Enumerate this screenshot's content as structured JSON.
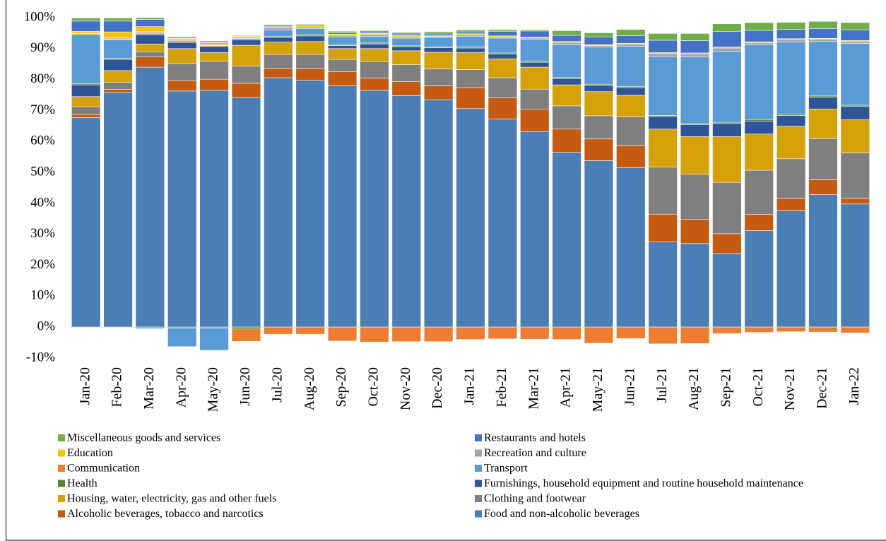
{
  "chart_data": {
    "type": "stacked_bar",
    "categories": [
      "Jan-20",
      "Feb-20",
      "Mar-20",
      "Apr-20",
      "May-20",
      "Jun-20",
      "Jul-20",
      "Aug-20",
      "Sep-20",
      "Oct-20",
      "Nov-20",
      "Dec-20",
      "Jan-21",
      "Feb-21",
      "Mar-21",
      "Apr-21",
      "May-21",
      "Jun-21",
      "Jul-21",
      "Aug-21",
      "Sep-21",
      "Oct-21",
      "Nov-21",
      "Dec-21",
      "Jan-22"
    ],
    "series": [
      {
        "name": "Food and non-alcoholic beverages",
        "color": "#4a7eb4",
        "values": [
          67.7,
          75.8,
          84.0,
          76.3,
          76.5,
          74.2,
          80.6,
          79.8,
          78.0,
          76.5,
          74.8,
          73.5,
          70.6,
          67.3,
          63.2,
          56.5,
          53.8,
          51.5,
          27.5,
          27.0,
          23.8,
          31.2,
          37.6,
          42.8,
          39.8
        ]
      },
      {
        "name": "Alcoholic beverages, tobacco and narcotics",
        "color": "#c55a11",
        "values": [
          1.0,
          1.0,
          3.3,
          3.4,
          3.6,
          4.6,
          3.0,
          3.8,
          4.5,
          4.0,
          4.5,
          4.5,
          6.8,
          6.8,
          7.2,
          7.5,
          7.0,
          7.2,
          9.0,
          7.8,
          6.4,
          5.2,
          4.0,
          4.8,
          1.9
        ]
      },
      {
        "name": "Clothing and footwear",
        "color": "#7f7f7f",
        "values": [
          2.5,
          2.3,
          1.7,
          5.5,
          5.8,
          5.6,
          4.5,
          4.5,
          4.0,
          5.3,
          5.5,
          5.4,
          5.8,
          6.5,
          6.5,
          7.5,
          7.5,
          9.2,
          15.2,
          14.6,
          16.6,
          14.3,
          12.8,
          13.3,
          14.6
        ]
      },
      {
        "name": "Housing, water, electricity, gas and other fuels",
        "color": "#d4a106",
        "values": [
          3.3,
          3.8,
          2.5,
          4.8,
          2.8,
          6.7,
          4.0,
          4.2,
          3.5,
          4.2,
          4.5,
          5.4,
          5.5,
          6.1,
          7.1,
          6.8,
          7.8,
          7.0,
          12.3,
          12.2,
          14.8,
          11.7,
          10.5,
          9.6,
          10.7
        ]
      },
      {
        "name": "Furnishings, household equipment and routine household maintenance",
        "color": "#2f5597",
        "values": [
          3.8,
          3.6,
          3.0,
          2.0,
          2.0,
          1.7,
          1.5,
          1.8,
          1.0,
          1.5,
          1.3,
          1.5,
          1.5,
          1.5,
          1.6,
          2.0,
          2.0,
          2.5,
          4.0,
          3.8,
          4.2,
          4.2,
          3.5,
          3.8,
          4.3
        ]
      },
      {
        "name": "Health",
        "color": "#548235",
        "values": [
          0.4,
          0.4,
          0.3,
          -0.3,
          -0.3,
          -0.6,
          0.4,
          0.4,
          0.3,
          0.3,
          0.3,
          0.3,
          0.3,
          0.4,
          0.4,
          0.4,
          0.4,
          0.4,
          0.4,
          0.4,
          0.4,
          0.5,
          0.4,
          0.4,
          0.4
        ]
      },
      {
        "name": "Transport",
        "color": "#5b9bd5",
        "values": [
          15.8,
          6.0,
          -0.5,
          -6.0,
          -7.2,
          0.5,
          2.0,
          2.0,
          2.5,
          2.2,
          2.5,
          3.0,
          3.5,
          4.8,
          7.0,
          10.5,
          12.0,
          13.0,
          19.0,
          21.5,
          23.0,
          24.2,
          23.3,
          17.6,
          20.0
        ]
      },
      {
        "name": "Communication",
        "color": "#ed7d31",
        "values": [
          0.3,
          0.2,
          0.3,
          0.5,
          0.3,
          -4.0,
          -2.3,
          -2.3,
          -4.5,
          -4.8,
          -4.7,
          -4.7,
          -4.0,
          -3.8,
          -3.9,
          -4.0,
          -5.2,
          -3.7,
          -5.4,
          -5.3,
          -2.1,
          -1.7,
          -1.5,
          -1.6,
          -1.9
        ]
      },
      {
        "name": "Recreation and culture",
        "color": "#a5a5a5",
        "values": [
          0.2,
          0.3,
          0.5,
          0.3,
          0.3,
          0.3,
          0.7,
          0.5,
          0.5,
          0.5,
          0.4,
          0.4,
          0.4,
          0.4,
          0.4,
          0.8,
          0.5,
          0.6,
          1.0,
          1.0,
          1.0,
          0.6,
          0.8,
          0.7,
          0.6
        ]
      },
      {
        "name": "Education",
        "color": "#ffc000",
        "values": [
          0.6,
          2.0,
          1.5,
          0.5,
          0.6,
          0.4,
          0.4,
          0.5,
          0.4,
          0.4,
          0.4,
          0.4,
          0.4,
          0.3,
          0.3,
          0.3,
          0.3,
          0.3,
          0.3,
          0.3,
          0.3,
          0.3,
          0.3,
          0.3,
          0.3
        ]
      },
      {
        "name": "Restaurants and hotels",
        "color": "#4472c4",
        "values": [
          3.3,
          3.5,
          2.3,
          0.3,
          0.3,
          0.2,
          0.4,
          0.3,
          0.4,
          0.4,
          0.5,
          0.6,
          0.6,
          1.5,
          2.0,
          2.0,
          2.5,
          2.5,
          4.0,
          4.0,
          5.0,
          3.7,
          3.0,
          3.2,
          3.5
        ]
      },
      {
        "name": "Miscellaneous goods and services",
        "color": "#70ad47",
        "values": [
          1.0,
          1.0,
          0.6,
          0.3,
          0.3,
          0.2,
          0.3,
          0.2,
          0.5,
          0.5,
          0.5,
          0.5,
          0.6,
          0.5,
          0.4,
          1.5,
          1.3,
          2.0,
          2.2,
          2.3,
          2.5,
          2.5,
          2.3,
          2.3,
          2.3
        ]
      }
    ],
    "ylim": [
      -10,
      100
    ],
    "yticks": [
      {
        "value": -10,
        "label": "-10%"
      },
      {
        "value": 0,
        "label": "0%"
      },
      {
        "value": 10,
        "label": "10%"
      },
      {
        "value": 20,
        "label": "20%"
      },
      {
        "value": 30,
        "label": "30%"
      },
      {
        "value": 40,
        "label": "40%"
      },
      {
        "value": 50,
        "label": "50%"
      },
      {
        "value": 60,
        "label": "60%"
      },
      {
        "value": 70,
        "label": "70%"
      },
      {
        "value": 80,
        "label": "80%"
      },
      {
        "value": 90,
        "label": "90%"
      },
      {
        "value": 100,
        "label": "100%"
      }
    ],
    "grid": false
  }
}
